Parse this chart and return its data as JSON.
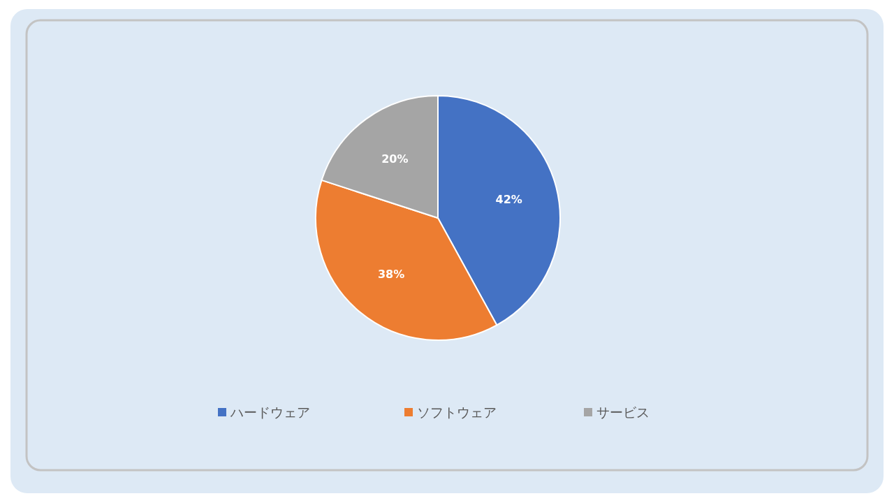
{
  "chart_data": {
    "type": "pie",
    "categories": [
      "ハードウェア",
      "ソフトウェア",
      "サービス"
    ],
    "values": [
      42,
      38,
      20
    ],
    "colors": [
      "#4472c4",
      "#ed7d31",
      "#a5a5a5"
    ],
    "value_labels": [
      "42%",
      "38%",
      "20%"
    ],
    "legend": "bottom"
  }
}
